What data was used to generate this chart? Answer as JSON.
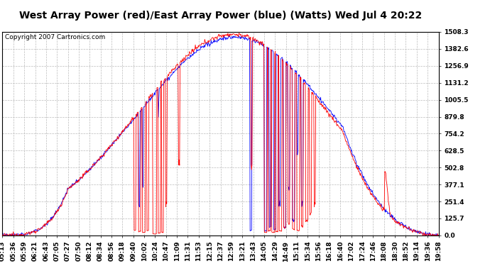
{
  "title": "West Array Power (red)/East Array Power (blue) (Watts) Wed Jul 4 20:22",
  "copyright": "Copyright 2007 Cartronics.com",
  "ylabel_right_ticks": [
    0.0,
    125.7,
    251.4,
    377.1,
    502.8,
    628.5,
    754.2,
    879.8,
    1005.5,
    1131.2,
    1256.9,
    1382.6,
    1508.3
  ],
  "ymax": 1508.3,
  "ymin": 0.0,
  "bg_color": "#ffffff",
  "plot_bg_color": "#ffffff",
  "grid_color": "#bbbbbb",
  "red_color": "#ff0000",
  "blue_color": "#0000ff",
  "title_fontsize": 10,
  "copyright_fontsize": 6.5,
  "tick_fontsize": 6.5,
  "x_labels": [
    "05:13",
    "05:36",
    "05:59",
    "06:21",
    "06:43",
    "07:05",
    "07:27",
    "07:50",
    "08:12",
    "08:34",
    "08:56",
    "09:18",
    "09:40",
    "10:02",
    "10:24",
    "10:47",
    "11:09",
    "11:31",
    "11:53",
    "12:15",
    "12:37",
    "12:59",
    "13:21",
    "13:43",
    "14:05",
    "14:29",
    "14:49",
    "15:11",
    "15:34",
    "15:56",
    "16:18",
    "16:40",
    "17:02",
    "17:24",
    "17:46",
    "18:08",
    "18:30",
    "18:52",
    "19:14",
    "19:36",
    "19:58"
  ]
}
